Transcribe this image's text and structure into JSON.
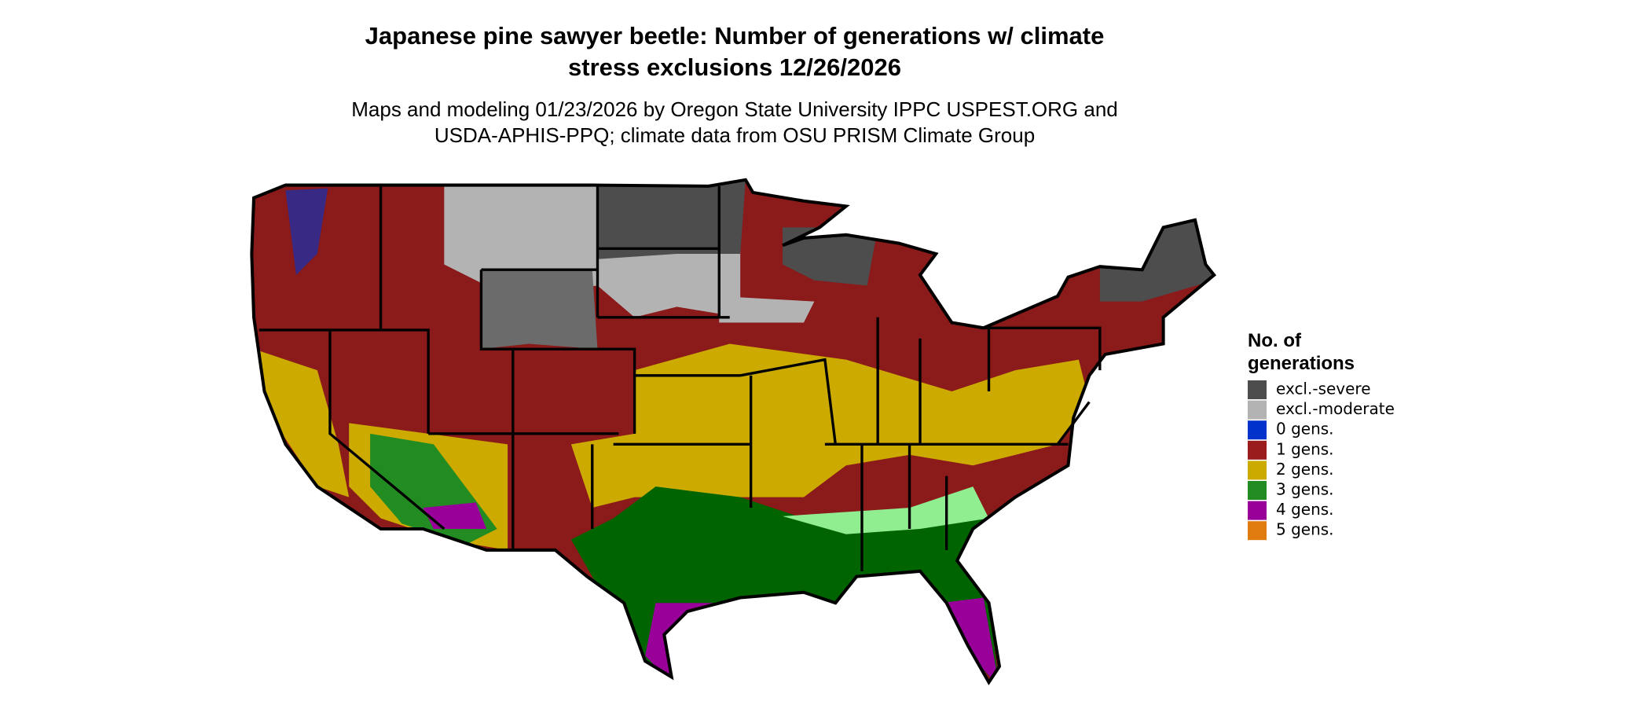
{
  "title": [
    "Japanese pine sawyer beetle: Number of generations w/ climate",
    "stress exclusions 12/26/2026"
  ],
  "subtitle": [
    "Maps and modeling 01/23/2026 by Oregon State University IPPC USPEST.ORG and",
    "USDA-APHIS-PPQ; climate data from OSU PRISM Climate Group"
  ],
  "legend": {
    "title": [
      "No. of",
      "generations"
    ],
    "items": [
      {
        "label": "excl.-severe",
        "color": "#4d4d4d"
      },
      {
        "label": "excl.-moderate",
        "color": "#b3b3b3"
      },
      {
        "label": "0 gens.",
        "color": "#0033cc"
      },
      {
        "label": "1 gens.",
        "color": "#9b1c1c"
      },
      {
        "label": "2 gens.",
        "color": "#ccaa00"
      },
      {
        "label": "3 gens.",
        "color": "#228b22"
      },
      {
        "label": "4 gens.",
        "color": "#990099"
      },
      {
        "label": "5 gens.",
        "color": "#e07b10"
      }
    ]
  }
}
